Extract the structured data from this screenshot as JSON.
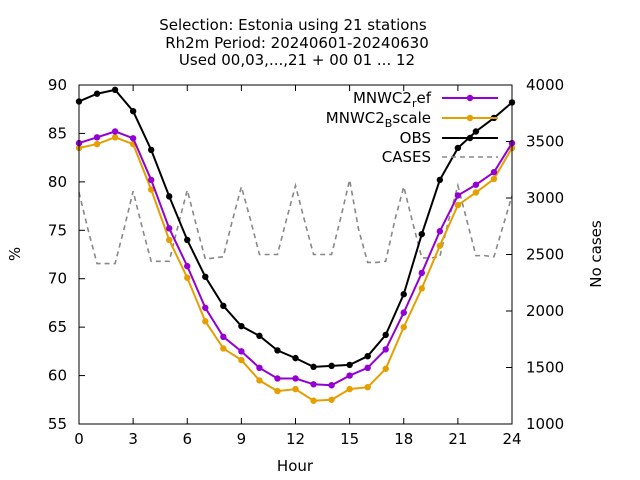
{
  "chart_data": {
    "type": "line",
    "title_lines": [
      "Selection: Estonia using    21 stations",
      "Rh2m   Period: 20240601-20240630",
      "Used 00,03,...,21 + 00 01 ... 12"
    ],
    "xlabel": "Hour",
    "ylabel": "%",
    "y2label": "No cases",
    "xlim": [
      0,
      24
    ],
    "ylim": [
      55,
      90
    ],
    "y2lim": [
      1000,
      4000
    ],
    "xticks": [
      0,
      3,
      6,
      9,
      12,
      15,
      18,
      21,
      24
    ],
    "yticks": [
      55,
      60,
      65,
      70,
      75,
      80,
      85,
      90
    ],
    "y2ticks": [
      1000,
      1500,
      2000,
      2500,
      3000,
      3500,
      4000
    ],
    "legend_position": "top-right",
    "series": [
      {
        "name_main": "MNWC2",
        "name_sub": "r",
        "name_rest": "ef",
        "color": "#9400d3",
        "axis": "y1",
        "style": "solid",
        "marker": "circle",
        "x": [
          0,
          1,
          2,
          3,
          4,
          5,
          6,
          7,
          8,
          9,
          10,
          11,
          12,
          13,
          14,
          15,
          16,
          17,
          18,
          19,
          20,
          21,
          22,
          23,
          24
        ],
        "values": [
          84.0,
          84.6,
          85.2,
          84.5,
          80.2,
          75.2,
          71.3,
          67.0,
          64.0,
          62.5,
          60.8,
          59.7,
          59.7,
          59.1,
          59.0,
          60.0,
          60.8,
          62.7,
          66.5,
          70.6,
          74.9,
          78.6,
          79.7,
          81.0,
          84.0
        ]
      },
      {
        "name_main": "MNWC2",
        "name_sub": "B",
        "name_rest": "scale",
        "color": "#e69f00",
        "axis": "y1",
        "style": "solid",
        "marker": "circle",
        "x": [
          0,
          1,
          2,
          3,
          4,
          5,
          6,
          7,
          8,
          9,
          10,
          11,
          12,
          13,
          14,
          15,
          16,
          17,
          18,
          19,
          20,
          21,
          22,
          23,
          24
        ],
        "values": [
          83.5,
          83.9,
          84.6,
          83.9,
          79.2,
          74.0,
          70.1,
          65.6,
          62.8,
          61.6,
          59.5,
          58.4,
          58.6,
          57.4,
          57.5,
          58.6,
          58.8,
          60.7,
          65.0,
          69.0,
          73.4,
          77.6,
          78.9,
          80.3,
          83.5
        ]
      },
      {
        "name_main": "OBS",
        "name_sub": "",
        "name_rest": "",
        "color": "#000000",
        "axis": "y1",
        "style": "solid",
        "marker": "circle",
        "x": [
          0,
          1,
          2,
          3,
          4,
          5,
          6,
          7,
          8,
          9,
          10,
          11,
          12,
          13,
          14,
          15,
          16,
          17,
          18,
          19,
          20,
          21,
          22,
          23,
          24
        ],
        "values": [
          88.3,
          89.1,
          89.5,
          87.3,
          83.3,
          78.5,
          74.0,
          70.2,
          67.2,
          65.1,
          64.1,
          62.6,
          61.8,
          60.9,
          61.0,
          61.1,
          62.0,
          64.2,
          68.4,
          74.6,
          80.2,
          83.5,
          85.2,
          86.6,
          88.2
        ]
      },
      {
        "name_main": "CASES",
        "name_sub": "",
        "name_rest": "",
        "color": "#888888",
        "axis": "y2",
        "style": "dashed",
        "marker": "none",
        "x": [
          0,
          0.5,
          1,
          1.5,
          2,
          2.5,
          3,
          3.5,
          4,
          4.5,
          5,
          5.5,
          6,
          6.5,
          7,
          7.5,
          8,
          8.5,
          9,
          9.5,
          10,
          10.5,
          11,
          11.5,
          12,
          12.5,
          13,
          13.5,
          14,
          14.5,
          15,
          15.5,
          16,
          16.5,
          17,
          17.5,
          18,
          18.5,
          19,
          19.5,
          20,
          20.5,
          21,
          21.5,
          22,
          22.5,
          23,
          23.5,
          24
        ],
        "values": [
          3050,
          2720,
          2420,
          2420,
          2420,
          2730,
          3060,
          2740,
          2440,
          2440,
          2440,
          2760,
          3070,
          2760,
          2460,
          2470,
          2480,
          2800,
          3100,
          2810,
          2500,
          2500,
          2500,
          2810,
          3110,
          2800,
          2500,
          2500,
          2500,
          2820,
          3160,
          2720,
          2430,
          2430,
          2440,
          2800,
          3100,
          2780,
          2470,
          2470,
          2480,
          2810,
          3110,
          2800,
          2490,
          2490,
          2480,
          2750,
          3020
        ]
      }
    ]
  }
}
